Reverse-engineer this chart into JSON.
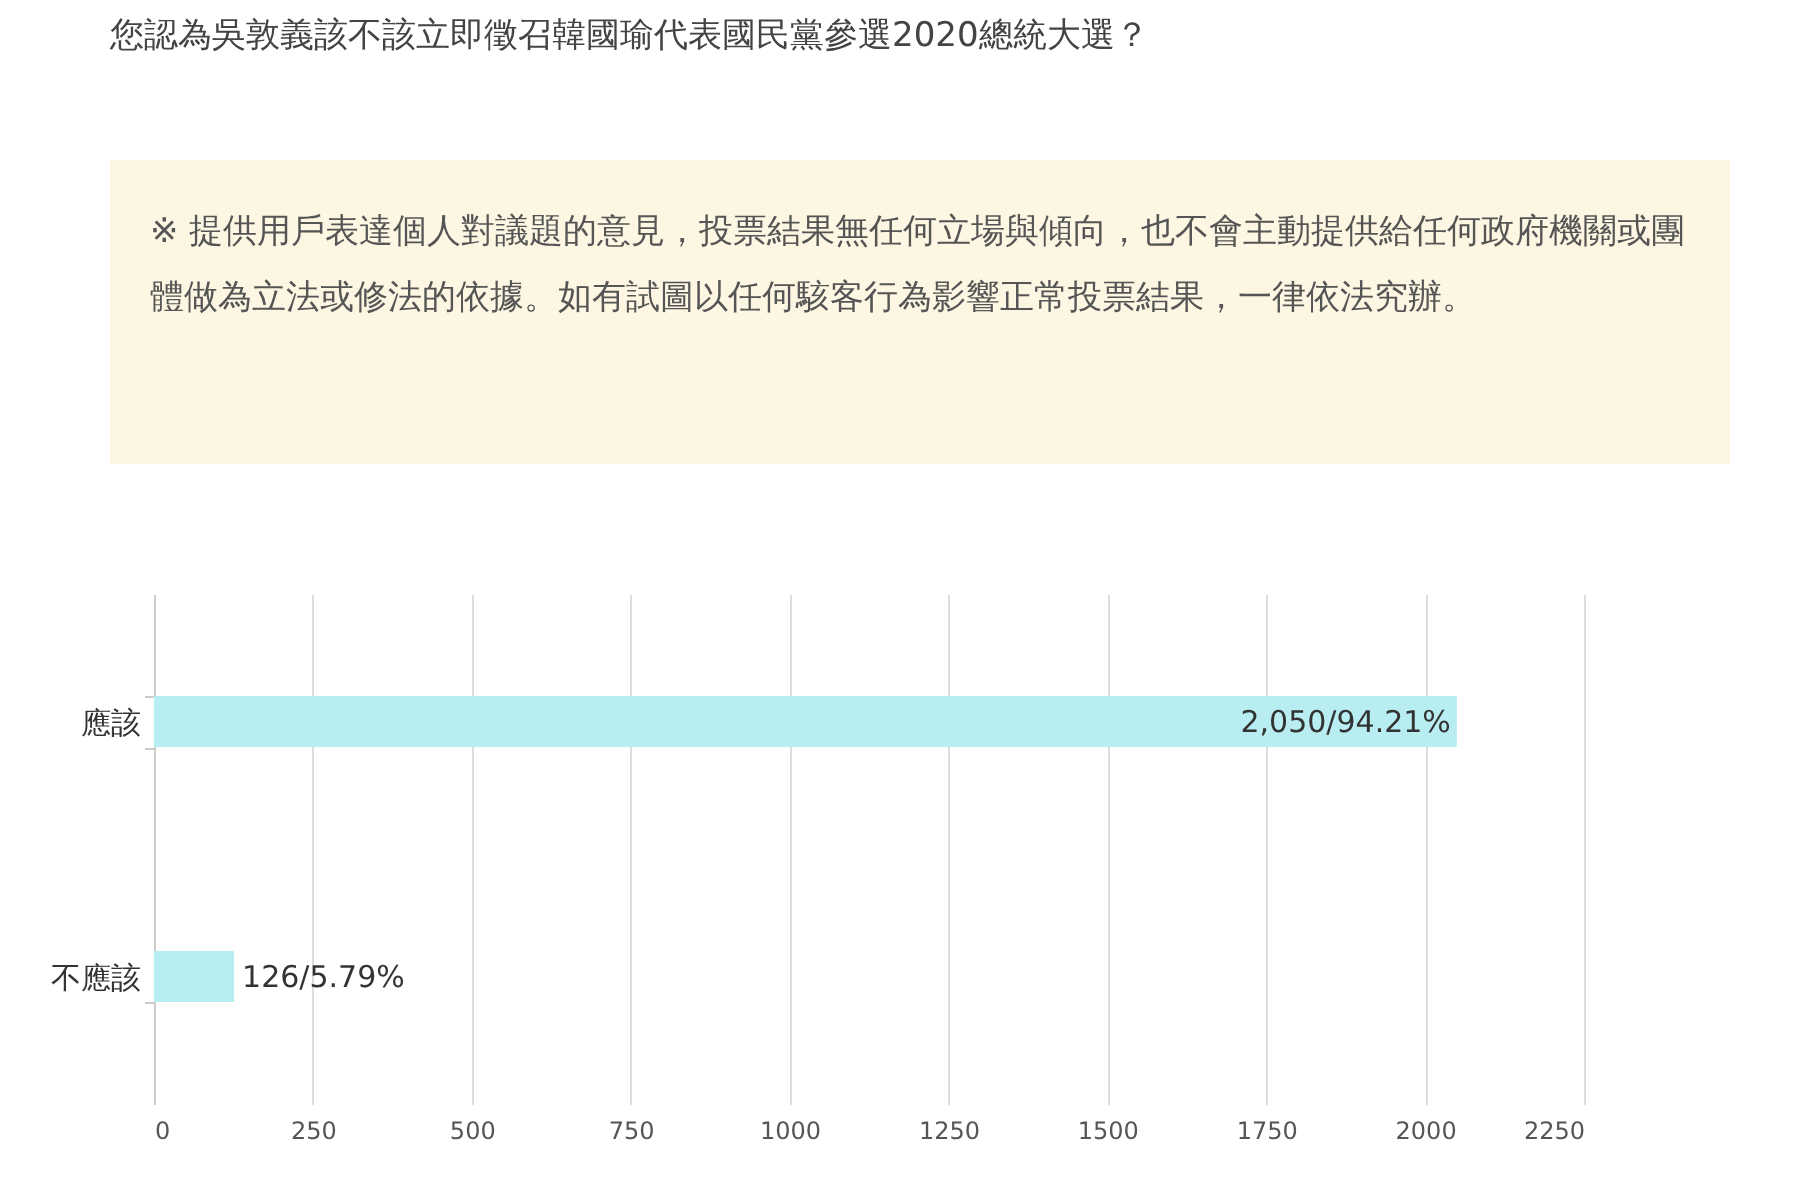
{
  "chart_data": {
    "type": "bar",
    "orientation": "horizontal",
    "title": "您認為吳敦義該不該立即徵召韓國瑜代表國民黨參選2020總統大選？",
    "annotations": [
      "※ 提供用戶表達個人對議題的意見，投票結果無任何立場與傾向，也不會主動提供給任何政府機關或團體做為立法或修法的依據。如有試圖以任何駭客行為影響正常投票結果，一律依法究辦。"
    ],
    "categories": [
      "應該",
      "不應該"
    ],
    "values": [
      2050,
      126
    ],
    "color": "#b8eef2",
    "value_labels": [
      "2,050/94.21%",
      "126/5.79%"
    ],
    "xlim": [
      0,
      2250
    ],
    "xticks": [
      0,
      250,
      500,
      750,
      1000,
      1250,
      1500,
      1750,
      2000,
      2250
    ],
    "grid": "x"
  }
}
